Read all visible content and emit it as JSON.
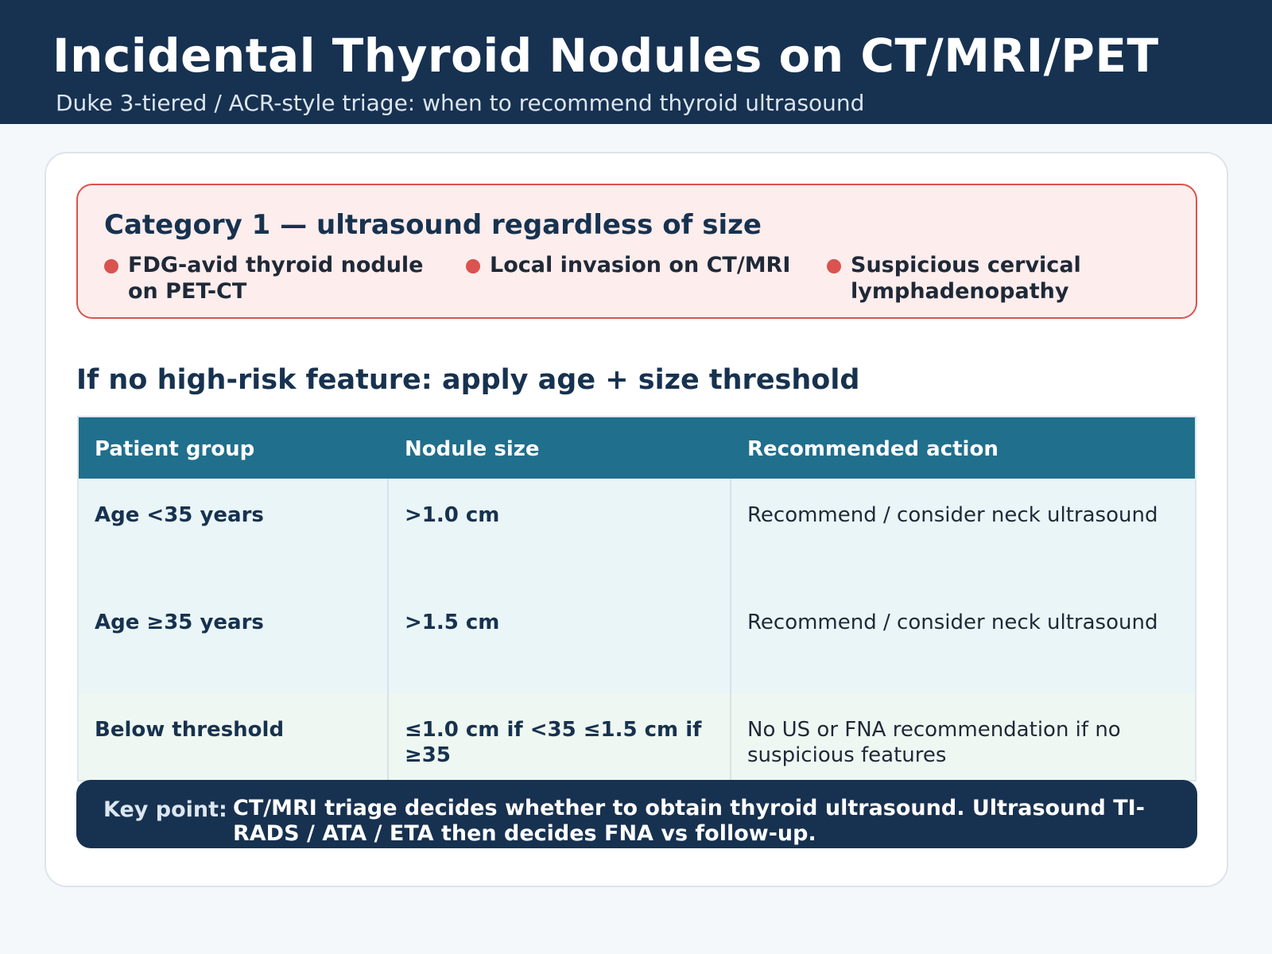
{
  "header": {
    "title": "Incidental Thyroid Nodules on CT/MRI/PET",
    "subtitle": "Duke 3-tiered / ACR-style triage: when to recommend thyroid ultrasound"
  },
  "category1": {
    "title": "Category 1 — ultrasound regardless of size",
    "features": [
      "FDG-avid thyroid nodule on PET-CT",
      "Local invasion on CT/MRI",
      "Suspicious cervical lymphadenopathy"
    ],
    "accent_color": "#d9534f"
  },
  "threshold_section": {
    "title": "If no high-risk feature: apply age + size threshold"
  },
  "table": {
    "headers": [
      "Patient group",
      "Nodule size",
      "Recommended action"
    ],
    "rows": [
      [
        "Age <35 years",
        ">1.0 cm",
        "Recommend / consider neck ultrasound"
      ],
      [
        "Age ≥35 years",
        ">1.5 cm",
        "Recommend / consider neck ultrasound"
      ],
      [
        "Below threshold",
        "≤1.0 cm if <35 ≤1.5 cm if ≥35",
        "No US or FNA recommendation if no suspicious features"
      ]
    ],
    "header_color": "#206f8c"
  },
  "key_point": {
    "label": "Key point:",
    "text": "CT/MRI triage decides whether to obtain thyroid ultrasound. Ultrasound TI-RADS / ATA / ETA then decides FNA vs follow-up."
  }
}
